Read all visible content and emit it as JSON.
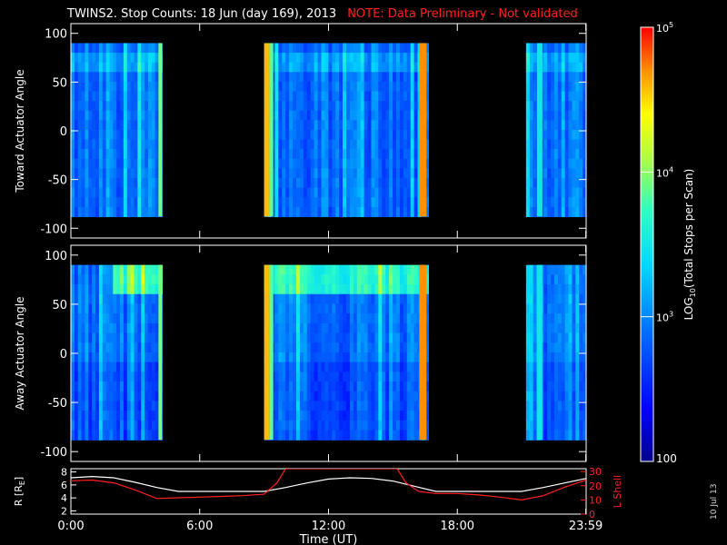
{
  "header": {
    "title": "TWINS2. Stop Counts: 18 Jun (day 169), 2013",
    "note": "NOTE: Data Preliminary - Not validated",
    "note_color": "#ff2020",
    "datestamp": "10 Jul 13"
  },
  "chart_data": [
    {
      "type": "heatmap",
      "name": "Toward Actuator Angle spectrogram",
      "ylabel": "Toward Actuator Angle",
      "ylim": [
        -110,
        110
      ],
      "yticks": [
        -100,
        -50,
        0,
        50,
        100
      ],
      "angle_range": [
        -88,
        90
      ],
      "xlim_hours": [
        0,
        24
      ],
      "data_intervals_hours": [
        [
          0.0,
          4.25
        ],
        [
          9.0,
          16.65
        ],
        [
          21.2,
          24.0
        ]
      ],
      "scale": "log10",
      "value_range": [
        100,
        100000
      ]
    },
    {
      "type": "heatmap",
      "name": "Away Actuator Angle spectrogram",
      "ylabel": "Away Actuator Angle",
      "ylim": [
        -110,
        110
      ],
      "yticks": [
        -100,
        -50,
        0,
        50,
        100
      ],
      "angle_range": [
        -88,
        90
      ],
      "xlim_hours": [
        0,
        24
      ],
      "data_intervals_hours": [
        [
          0.0,
          4.25
        ],
        [
          9.0,
          16.65
        ],
        [
          21.2,
          24.0
        ]
      ],
      "scale": "log10",
      "value_range": [
        100,
        100000
      ]
    },
    {
      "type": "line",
      "name": "orbit",
      "xlabel": "Time (UT)",
      "xticklabels": [
        "0:00",
        "6:00",
        "12:00",
        "18:00",
        "23:59"
      ],
      "xticks_hours": [
        0,
        6,
        12,
        18,
        23.983
      ],
      "ylabel_left": "R [R",
      "ylabel_left_sub": "E",
      "ylabel_left_end": "]",
      "yticks_left": [
        2,
        4,
        6,
        8
      ],
      "ylim_left": [
        1.5,
        8.5
      ],
      "ylabel_right": "L Shell",
      "yticks_right": [
        0,
        10,
        20,
        30
      ],
      "ylim_right": [
        0,
        32
      ],
      "series": [
        {
          "name": "R [RE]",
          "color": "#ffffff",
          "x": [
            0,
            1,
            2,
            3,
            4,
            5,
            6,
            7,
            8,
            9,
            10,
            11,
            12,
            13,
            14,
            15,
            16,
            17,
            18,
            19,
            20,
            21,
            22,
            23,
            24
          ],
          "values": [
            7.1,
            7.3,
            7.1,
            6.4,
            5.6,
            5.0,
            5.0,
            5.0,
            5.0,
            5.0,
            5.6,
            6.3,
            6.9,
            7.1,
            7.0,
            6.6,
            5.8,
            5.0,
            5.0,
            5.0,
            5.0,
            5.0,
            5.6,
            6.3,
            7.0
          ]
        },
        {
          "name": "L Shell",
          "color": "#ff2020",
          "x": [
            0,
            1,
            2,
            3,
            4,
            5,
            6,
            7,
            8,
            9,
            9.6,
            10.0,
            15.2,
            15.6,
            16.2,
            17,
            18,
            19,
            20,
            21,
            22,
            23,
            24
          ],
          "values": [
            23.5,
            24,
            22,
            17,
            11,
            11.5,
            12,
            12.5,
            13,
            14,
            22,
            32,
            32,
            22,
            16,
            14.5,
            14.5,
            13.5,
            12,
            10,
            13,
            19,
            24
          ]
        }
      ]
    }
  ],
  "colorbar": {
    "label": "LOG",
    "label_sub": "10",
    "label_rest": "(Total Stops per Scan)",
    "ticks": [
      {
        "base": "10",
        "exp": "5"
      },
      {
        "base": "10",
        "exp": "4"
      },
      {
        "base": "10",
        "exp": "3"
      }
    ],
    "bottom_label": "100"
  }
}
